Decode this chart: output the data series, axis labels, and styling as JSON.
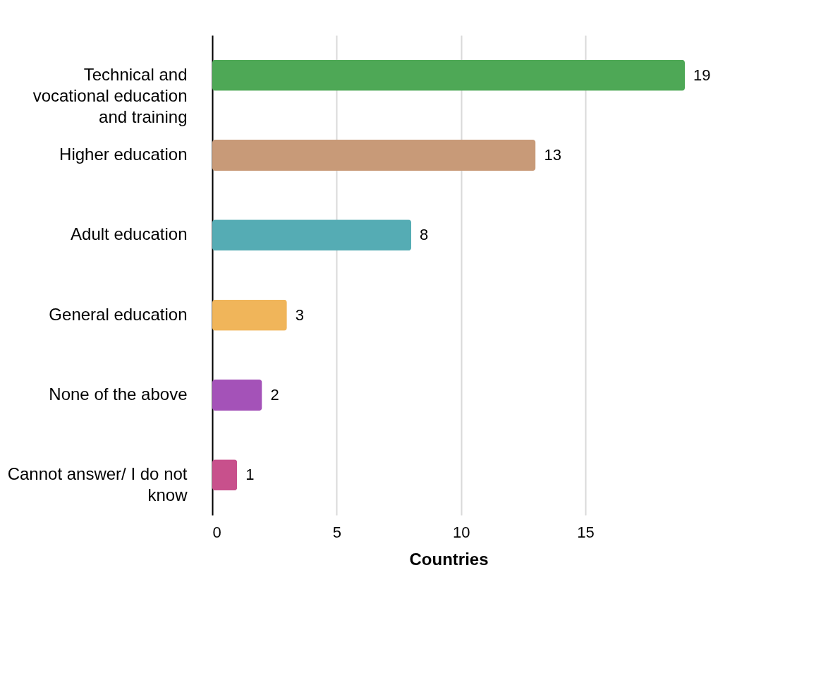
{
  "chart_data": {
    "type": "bar",
    "orientation": "horizontal",
    "xlabel": "Countries",
    "categories": [
      "Technical and vocational education and training",
      "Higher education",
      "Adult education",
      "General education",
      "None of the above",
      "Cannot answer/ I do not know"
    ],
    "values": [
      19,
      13,
      8,
      3,
      2,
      1
    ],
    "colors": [
      "#4ea856",
      "#c89a78",
      "#55acb4",
      "#f0b55a",
      "#a452b8",
      "#c8508c"
    ],
    "xlim": [
      0,
      19
    ],
    "xticks": [
      0,
      5,
      10,
      15
    ],
    "grid": "x",
    "data_labels": true
  }
}
